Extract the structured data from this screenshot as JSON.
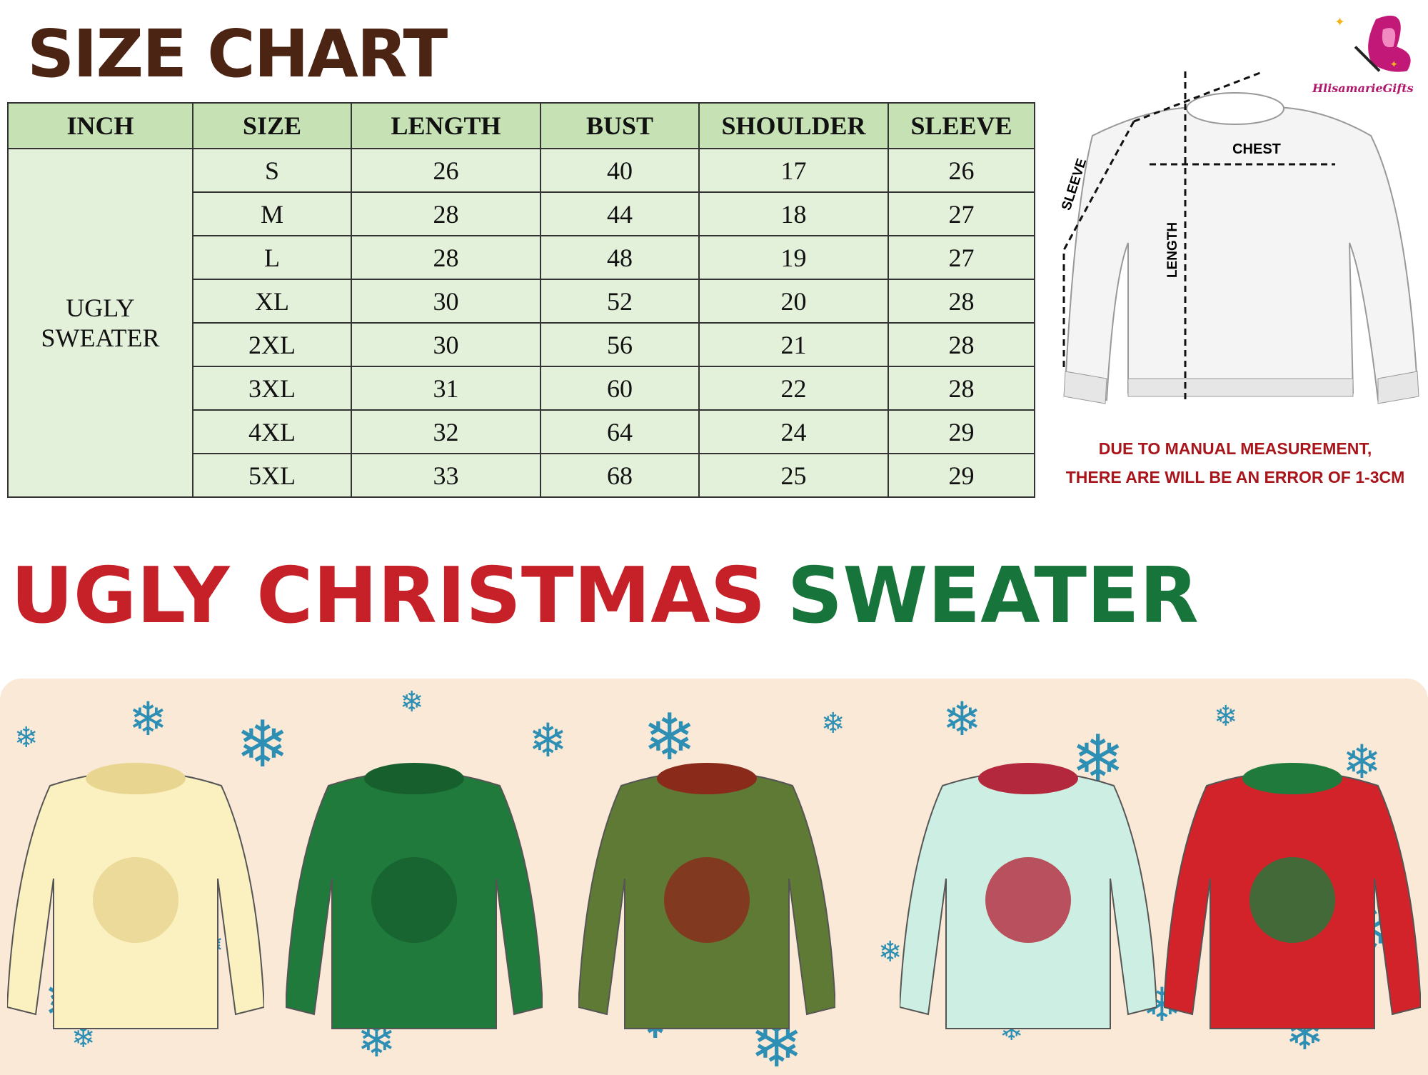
{
  "title": "SIZE CHART",
  "table": {
    "headers": [
      "INCH",
      "SIZE",
      "LENGTH",
      "BUST",
      "SHOULDER",
      "SLEEVE"
    ],
    "category": "UGLY SWEATER",
    "rows": [
      {
        "size": "S",
        "length": "26",
        "bust": "40",
        "shoulder": "17",
        "sleeve": "26"
      },
      {
        "size": "M",
        "length": "28",
        "bust": "44",
        "shoulder": "18",
        "sleeve": "27"
      },
      {
        "size": "L",
        "length": "28",
        "bust": "48",
        "shoulder": "19",
        "sleeve": "27"
      },
      {
        "size": "XL",
        "length": "30",
        "bust": "52",
        "shoulder": "20",
        "sleeve": "28"
      },
      {
        "size": "2XL",
        "length": "30",
        "bust": "56",
        "shoulder": "21",
        "sleeve": "28"
      },
      {
        "size": "3XL",
        "length": "31",
        "bust": "60",
        "shoulder": "22",
        "sleeve": "28"
      },
      {
        "size": "4XL",
        "length": "32",
        "bust": "64",
        "shoulder": "24",
        "sleeve": "29"
      },
      {
        "size": "5XL",
        "length": "33",
        "bust": "68",
        "shoulder": "25",
        "sleeve": "29"
      }
    ]
  },
  "diagram": {
    "chest": "CHEST",
    "length": "LENGTH",
    "sleeve": "SLEEVE"
  },
  "logo": {
    "text": "HlisamarieGifts"
  },
  "note": {
    "line1": "DUE TO MANUAL MEASUREMENT,",
    "line2": "THERE ARE WILL BE AN ERROR OF 1-3CM"
  },
  "banner": {
    "red": "UGLY CHRISTMAS",
    "green": "SWEATER"
  },
  "colors": {
    "title": "#4b2413",
    "header": "#c6e2b4",
    "cell": "#e3f0da",
    "red": "#c62028",
    "green": "#17743a",
    "note": "#a8151b",
    "panel": "#fae9d6"
  }
}
